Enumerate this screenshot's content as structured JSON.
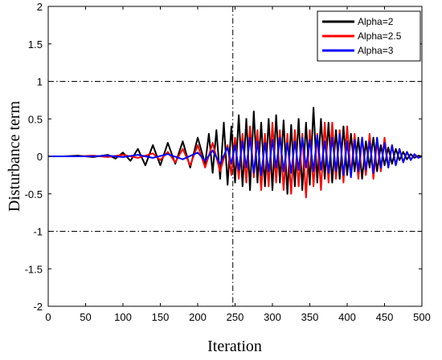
{
  "chart_data": {
    "type": "line",
    "title": "",
    "xlabel": "Iteration",
    "ylabel": "Disturbance term",
    "xlim": [
      0,
      500
    ],
    "ylim": [
      -2,
      2
    ],
    "xticks": [
      "0",
      "50",
      "100",
      "150",
      "200",
      "250",
      "300",
      "350",
      "400",
      "450",
      "500"
    ],
    "yticks": [
      "2",
      "1.5",
      "1",
      "0.5",
      "0",
      "-0.5",
      "-1",
      "-1.5",
      "-2"
    ],
    "legend_position": "top-right",
    "reference_lines": {
      "horizontal_y": [
        1,
        -1
      ],
      "vertical_x": [
        247
      ],
      "style": "dash-dot",
      "color": "#000000"
    },
    "series": [
      {
        "name": "Alpha=2",
        "color": "#000000",
        "x": [
          0,
          20,
          40,
          60,
          80,
          90,
          100,
          110,
          120,
          130,
          140,
          150,
          160,
          170,
          180,
          190,
          200,
          210,
          215,
          220,
          225,
          230,
          235,
          240,
          245,
          250,
          255,
          260,
          265,
          270,
          275,
          280,
          285,
          290,
          295,
          300,
          305,
          310,
          315,
          320,
          325,
          330,
          335,
          340,
          345,
          350,
          355,
          360,
          365,
          370,
          375,
          380,
          385,
          390,
          395,
          400,
          405,
          410,
          415,
          420,
          425,
          430,
          435,
          440,
          445,
          450,
          455,
          460,
          465,
          470,
          475,
          480,
          485,
          490,
          495,
          500
        ],
        "y": [
          0,
          0,
          0.01,
          -0.01,
          0.02,
          -0.03,
          0.05,
          -0.06,
          0.1,
          -0.12,
          0.15,
          -0.12,
          0.18,
          -0.1,
          0.2,
          -0.15,
          0.25,
          -0.1,
          0.3,
          -0.22,
          0.35,
          -0.3,
          0.45,
          -0.38,
          0.4,
          -0.35,
          0.55,
          -0.4,
          0.5,
          -0.45,
          0.6,
          -0.35,
          0.45,
          -0.4,
          0.5,
          -0.45,
          0.55,
          -0.35,
          0.48,
          -0.5,
          0.42,
          -0.4,
          0.5,
          -0.45,
          0.45,
          -0.38,
          0.65,
          -0.35,
          0.5,
          -0.3,
          0.45,
          -0.35,
          0.35,
          -0.3,
          0.4,
          -0.25,
          0.3,
          -0.2,
          0.25,
          -0.3,
          0.2,
          -0.15,
          0.25,
          -0.2,
          0.15,
          -0.12,
          0.12,
          -0.1,
          0.1,
          -0.05,
          0.06,
          -0.04,
          0.03,
          -0.02,
          0.01,
          0
        ]
      },
      {
        "name": "Alpha=2.5",
        "color": "#ff0000",
        "x": [
          0,
          20,
          40,
          60,
          80,
          100,
          120,
          140,
          150,
          160,
          170,
          180,
          190,
          200,
          210,
          220,
          230,
          240,
          245,
          250,
          255,
          260,
          265,
          270,
          275,
          280,
          285,
          290,
          295,
          300,
          305,
          310,
          315,
          320,
          325,
          330,
          335,
          340,
          345,
          350,
          355,
          360,
          365,
          370,
          375,
          380,
          385,
          390,
          395,
          400,
          405,
          410,
          415,
          420,
          425,
          430,
          435,
          440,
          445,
          450,
          455,
          460,
          465,
          470,
          475,
          480,
          485,
          490,
          495,
          500
        ],
        "y": [
          0,
          0,
          0,
          0.01,
          -0.01,
          0.02,
          -0.02,
          0.04,
          -0.05,
          0.06,
          -0.08,
          0.1,
          -0.12,
          0.15,
          -0.15,
          0.18,
          -0.2,
          0.15,
          -0.25,
          0.25,
          -0.3,
          0.3,
          -0.35,
          0.4,
          -0.28,
          0.35,
          -0.45,
          0.3,
          -0.4,
          0.45,
          -0.35,
          0.35,
          -0.45,
          0.3,
          -0.5,
          0.35,
          -0.4,
          0.3,
          -0.55,
          0.35,
          -0.4,
          0.3,
          -0.45,
          0.45,
          -0.35,
          0.45,
          -0.3,
          0.35,
          -0.35,
          0.4,
          -0.25,
          0.3,
          -0.3,
          0.25,
          -0.25,
          0.3,
          -0.3,
          0.2,
          -0.2,
          0.25,
          -0.15,
          0.15,
          -0.12,
          0.1,
          -0.08,
          0.06,
          -0.04,
          0.02,
          -0.01,
          0
        ]
      },
      {
        "name": "Alpha=3",
        "color": "#0000ff",
        "x": [
          0,
          20,
          40,
          60,
          80,
          100,
          120,
          140,
          160,
          180,
          200,
          210,
          220,
          230,
          240,
          245,
          250,
          255,
          260,
          265,
          270,
          275,
          280,
          285,
          290,
          295,
          300,
          305,
          310,
          315,
          320,
          325,
          330,
          335,
          340,
          345,
          350,
          355,
          360,
          365,
          370,
          375,
          380,
          385,
          390,
          395,
          400,
          405,
          410,
          415,
          420,
          425,
          430,
          435,
          440,
          445,
          450,
          455,
          460,
          465,
          470,
          475,
          480,
          485,
          490,
          495,
          500
        ],
        "y": [
          0,
          0,
          0,
          0,
          0.01,
          -0.01,
          0.02,
          -0.02,
          0.03,
          -0.04,
          0.05,
          -0.06,
          0.08,
          -0.1,
          0.12,
          -0.1,
          0.15,
          -0.18,
          0.2,
          -0.15,
          0.25,
          -0.22,
          0.2,
          -0.25,
          0.18,
          -0.2,
          0.22,
          -0.15,
          0.25,
          -0.2,
          0.18,
          -0.22,
          0.2,
          -0.18,
          0.25,
          -0.15,
          0.22,
          -0.2,
          0.28,
          -0.18,
          0.2,
          -0.22,
          0.25,
          -0.2,
          0.3,
          -0.25,
          0.2,
          -0.28,
          0.22,
          -0.2,
          0.25,
          -0.18,
          0.2,
          -0.22,
          0.25,
          -0.15,
          0.18,
          -0.15,
          0.15,
          -0.12,
          0.1,
          -0.08,
          0.06,
          -0.05,
          0.03,
          -0.02,
          0
        ]
      }
    ]
  }
}
